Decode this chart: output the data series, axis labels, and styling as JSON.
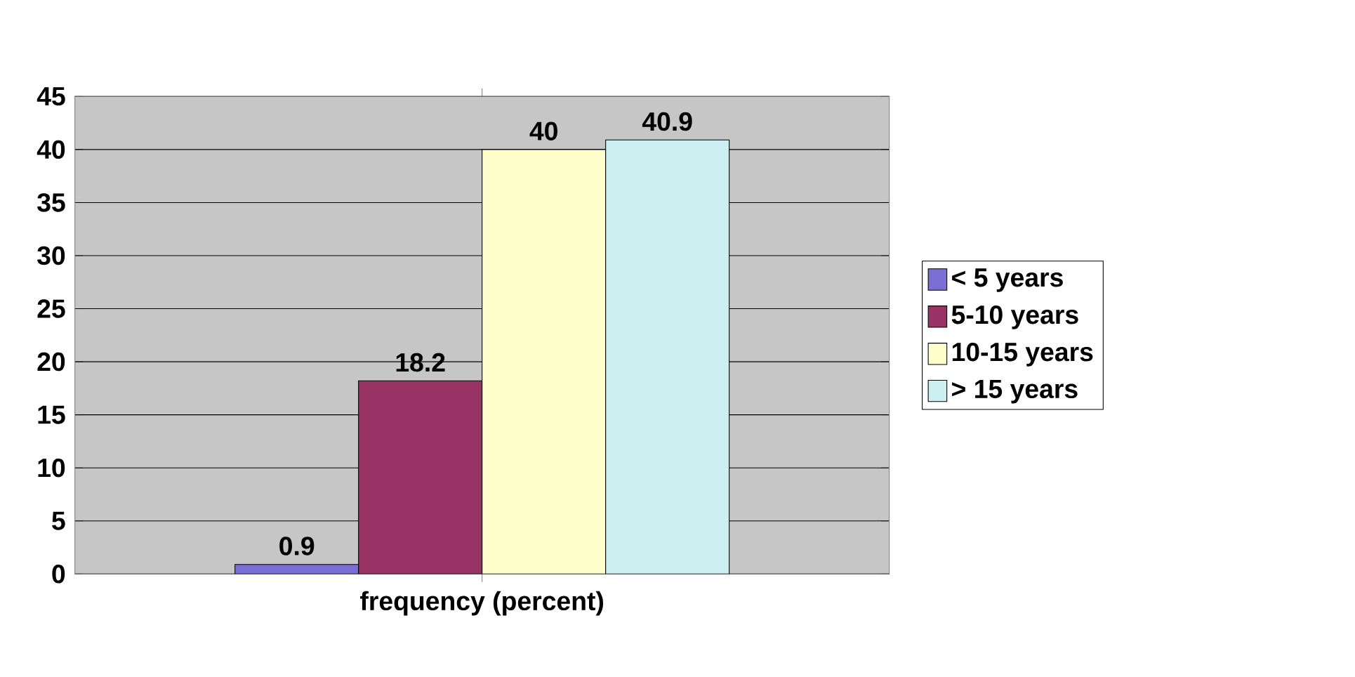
{
  "chart_data": {
    "type": "bar",
    "categories": [
      "frequency (percent)"
    ],
    "series": [
      {
        "name": "< 5 years",
        "color": "#7b6fd6",
        "values": [
          0.9
        ]
      },
      {
        "name": "5-10 years",
        "color": "#993366",
        "values": [
          18.2
        ]
      },
      {
        "name": "10-15 years",
        "color": "#ffffcc",
        "values": [
          40
        ]
      },
      {
        "name": "> 15 years",
        "color": "#ccf0f2",
        "values": [
          40.9
        ]
      }
    ],
    "ylim": [
      0,
      45
    ],
    "yticks": [
      0,
      5,
      10,
      15,
      20,
      25,
      30,
      35,
      40,
      45
    ],
    "grid": "y",
    "legend": "right",
    "data_labels": true
  }
}
